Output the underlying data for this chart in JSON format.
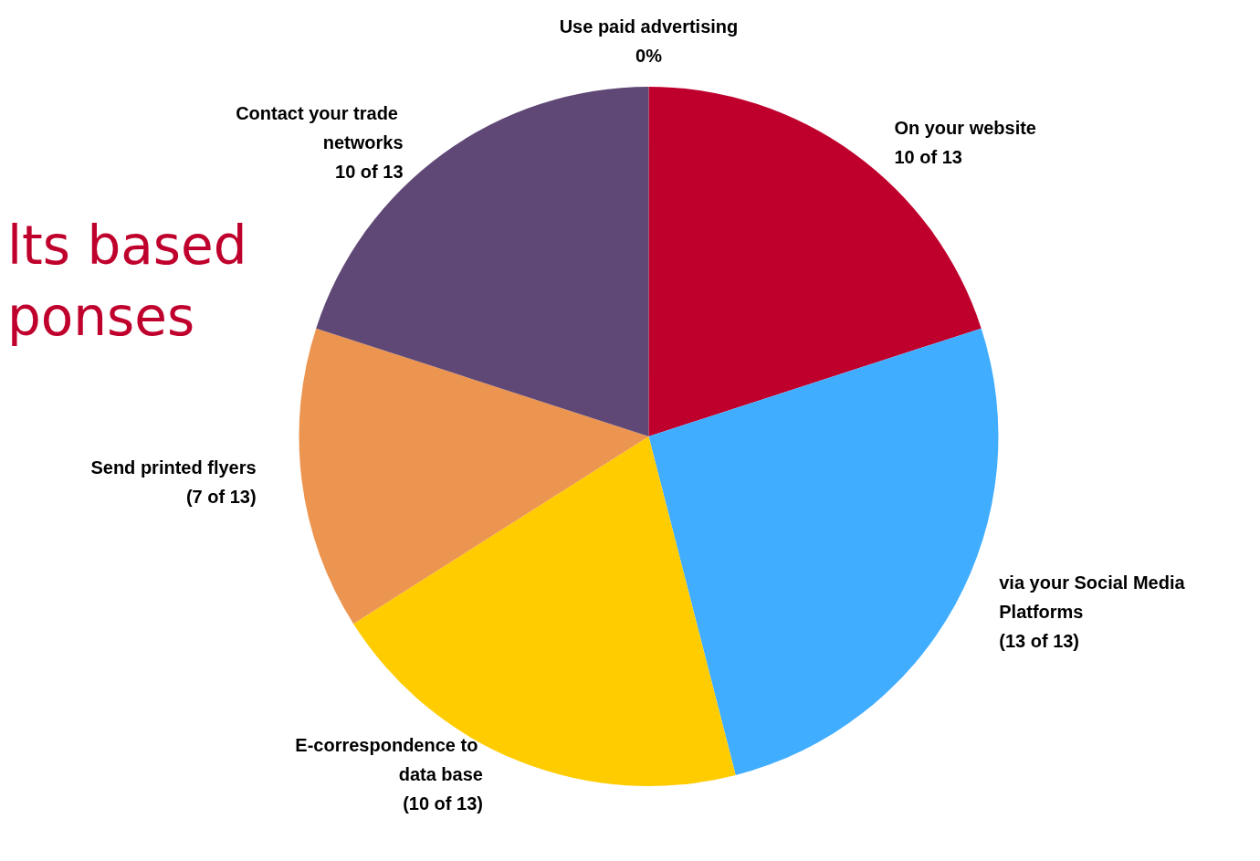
{
  "chart_data": {
    "type": "pie",
    "categories": [
      "Use paid advertising",
      "On your website",
      "via your Social Media Platforms",
      "E-correspondence to data base",
      "Send printed flyers",
      "Contact your trade networks"
    ],
    "values": [
      0,
      10,
      13,
      10,
      7,
      10
    ],
    "value_labels": [
      "0%",
      "10 of 13",
      "(13 of 13)",
      "(10 of 13)",
      "(7 of 13)",
      "10 of 13"
    ],
    "colors": [
      "#7f7f7f",
      "#c0002c",
      "#41adff",
      "#ffcc00",
      "#ec9551",
      "#604876"
    ],
    "annotations": [
      "lts based",
      "ponses"
    ],
    "legend": false
  }
}
